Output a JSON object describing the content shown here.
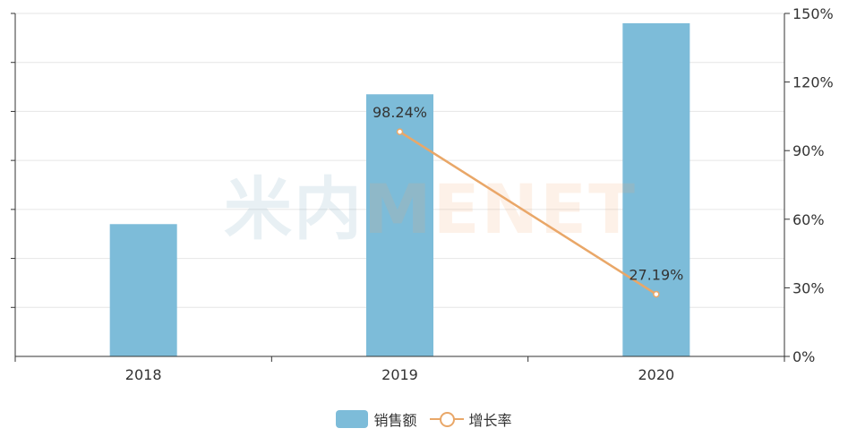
{
  "chart_data": {
    "type": "bar",
    "categories": [
      "2018",
      "2019",
      "2020"
    ],
    "series": [
      {
        "name": "销售额",
        "type": "bar",
        "axis": "left",
        "values": [
          54,
          107,
          136
        ]
      },
      {
        "name": "增长率",
        "type": "line",
        "axis": "right",
        "values": [
          null,
          98.24,
          27.19
        ],
        "labels": [
          "",
          "98.24%",
          "27.19%"
        ]
      }
    ],
    "y_right_ticks": [
      "0%",
      "30%",
      "60%",
      "90%",
      "120%",
      "150%"
    ],
    "y_right_lim": [
      0,
      150
    ],
    "y_left_lim": [
      0,
      140
    ],
    "grid": true,
    "legend_position": "bottom-center",
    "colors": {
      "bar": "#7dbcd9",
      "line": "#e9a768",
      "axis": "#333333",
      "grid": "#e6e6e6"
    }
  },
  "watermark": {
    "left": "米内",
    "right": "MENET"
  },
  "legend": [
    {
      "label": "销售额",
      "icon": "bar-swatch"
    },
    {
      "label": "增长率",
      "icon": "line-circle-swatch"
    }
  ]
}
